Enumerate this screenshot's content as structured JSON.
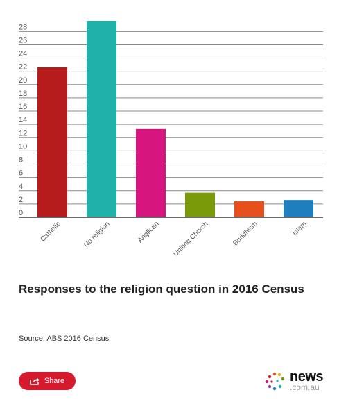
{
  "chart_data": {
    "type": "bar",
    "categories": [
      "Catholic",
      "No religion",
      "Anglican",
      "Uniting Church",
      "Buddhism",
      "Islam"
    ],
    "values": [
      22.6,
      29.6,
      13.3,
      3.7,
      2.4,
      2.6
    ],
    "colors": [
      "#b71c1c",
      "#20b2aa",
      "#d6157e",
      "#7a9a0a",
      "#e6501c",
      "#1f7ebd"
    ],
    "ylabel": "",
    "xlabel": "",
    "yticks": [
      0,
      2,
      4,
      6,
      8,
      10,
      12,
      14,
      16,
      18,
      20,
      22,
      24,
      26,
      28
    ],
    "ylim": [
      0,
      30
    ],
    "grid": true,
    "legend": "none"
  },
  "caption": {
    "title": "Responses to the religion question in 2016 Census",
    "source": "Source: ABS 2016 Census"
  },
  "share": {
    "label": "Share",
    "color": "#d7192d",
    "icon": "share-icon"
  },
  "brand": {
    "name": "news",
    "domain": ".com.au",
    "icon": "news-logo-dots-icon"
  }
}
